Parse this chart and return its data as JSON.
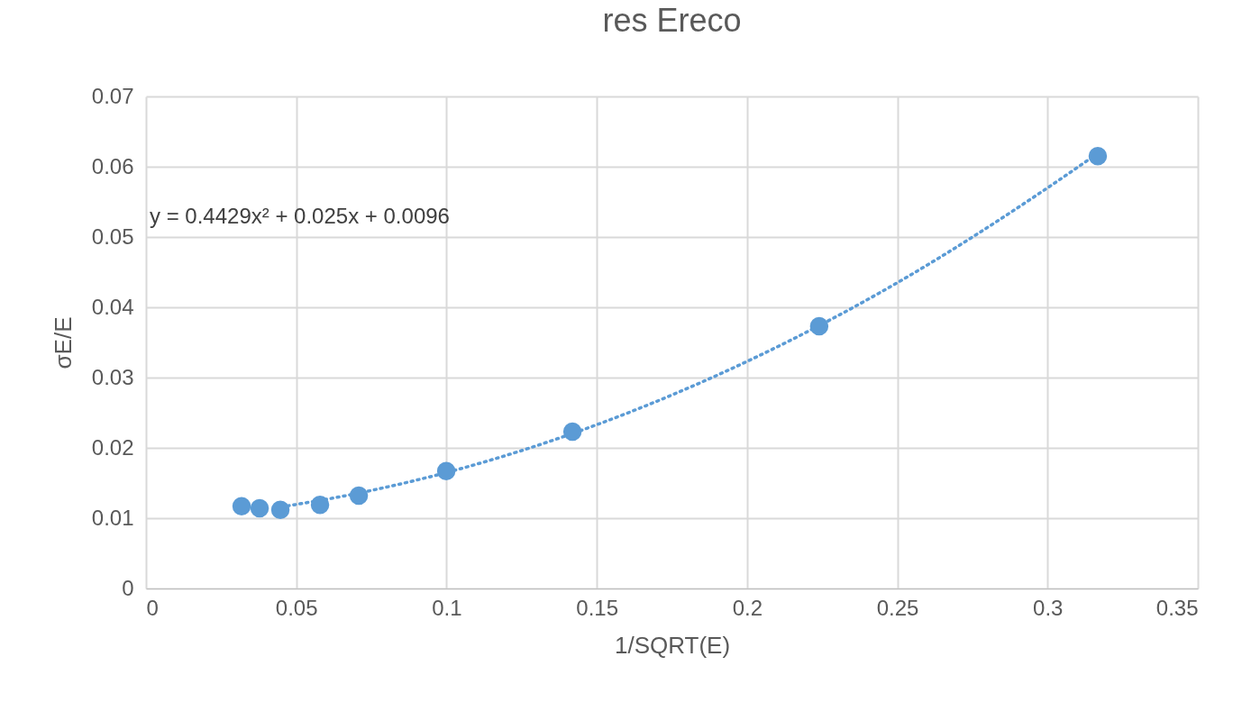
{
  "chart_data": {
    "type": "scatter",
    "title": "res Ereco",
    "xlabel": "1/SQRT(E)",
    "ylabel": "σE/E",
    "x": [
      0.0318,
      0.0378,
      0.0447,
      0.0579,
      0.0708,
      0.0999,
      0.1419,
      0.224,
      0.3167
    ],
    "series": [
      {
        "type": "scatter",
        "color": "#5b9bd5",
        "marker": "circle",
        "values": [
          0.0117,
          0.0114,
          0.0112,
          0.0119,
          0.0132,
          0.0167,
          0.0223,
          0.0373,
          0.0615
        ]
      },
      {
        "type": "line",
        "color": "#5b9bd5",
        "line_style": "dotted",
        "marker": "none",
        "x": [
          0.045,
          0.07,
          0.1,
          0.15,
          0.2,
          0.25,
          0.3,
          0.316
        ],
        "values": [
          0.0116,
          0.0135,
          0.0165,
          0.0233,
          0.0323,
          0.0435,
          0.057,
          0.0617
        ]
      }
    ],
    "annotations": [
      "y = 0.4429x² + 0.025x + 0.0096"
    ],
    "xlim": [
      0,
      0.35
    ],
    "xticks": [
      0,
      0.05,
      0.1,
      0.15,
      0.2,
      0.25,
      0.3,
      0.35
    ],
    "ylim": [
      0,
      0.07
    ],
    "yticks": [
      0,
      0.01,
      0.02,
      0.03,
      0.04,
      0.05,
      0.06,
      0.07
    ],
    "grid": true
  }
}
